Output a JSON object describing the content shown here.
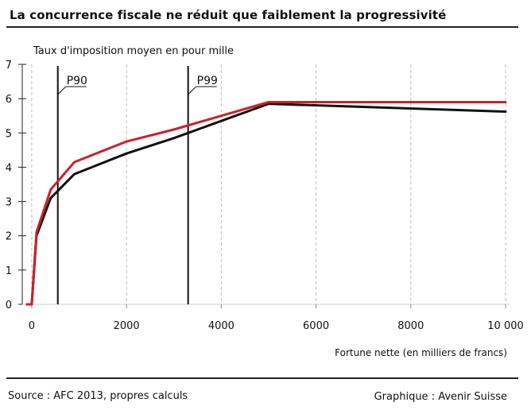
{
  "chart_data": {
    "type": "line",
    "title": "La concurrence fiscale ne réduit que faiblement la progressivité",
    "ylabel": "Taux d'imposition moyen en pour mille",
    "xlabel": "Fortune nette (en milliers de francs)",
    "xlim": [
      -200,
      10100
    ],
    "ylim": [
      0,
      7
    ],
    "x_ticks": [
      {
        "value": 0,
        "label": "0"
      },
      {
        "value": 2000,
        "label": "2000"
      },
      {
        "value": 4000,
        "label": "4000"
      },
      {
        "value": 6000,
        "label": "6000"
      },
      {
        "value": 8000,
        "label": "8000"
      },
      {
        "value": 10000,
        "label": "10 000"
      }
    ],
    "y_ticks": [
      0,
      1,
      2,
      3,
      4,
      5,
      6,
      7
    ],
    "grid": "dashed vertical",
    "markers": [
      {
        "label": "P90",
        "x": 550
      },
      {
        "label": "P99",
        "x": 3300
      }
    ],
    "series": [
      {
        "color": "#cc2229",
        "x": [
          -100,
          0,
          100,
          400,
          900,
          2000,
          3000,
          4000,
          5000,
          10000
        ],
        "y": [
          0,
          0,
          2.1,
          3.35,
          4.15,
          4.75,
          5.1,
          5.5,
          5.9,
          5.9
        ]
      },
      {
        "color": "#111111",
        "x": [
          -100,
          0,
          100,
          400,
          900,
          2000,
          3000,
          4000,
          5000,
          10000
        ],
        "y": [
          0,
          0,
          2.0,
          3.1,
          3.8,
          4.4,
          4.85,
          5.35,
          5.85,
          5.62
        ]
      }
    ]
  },
  "footer": {
    "source": "Source : AFC 2013, propres calculs",
    "credit": "Graphique : Avenir Suisse"
  },
  "colors": {
    "red_series": "#cc2229",
    "black_series": "#111111",
    "grid": "#bdbdbd"
  }
}
